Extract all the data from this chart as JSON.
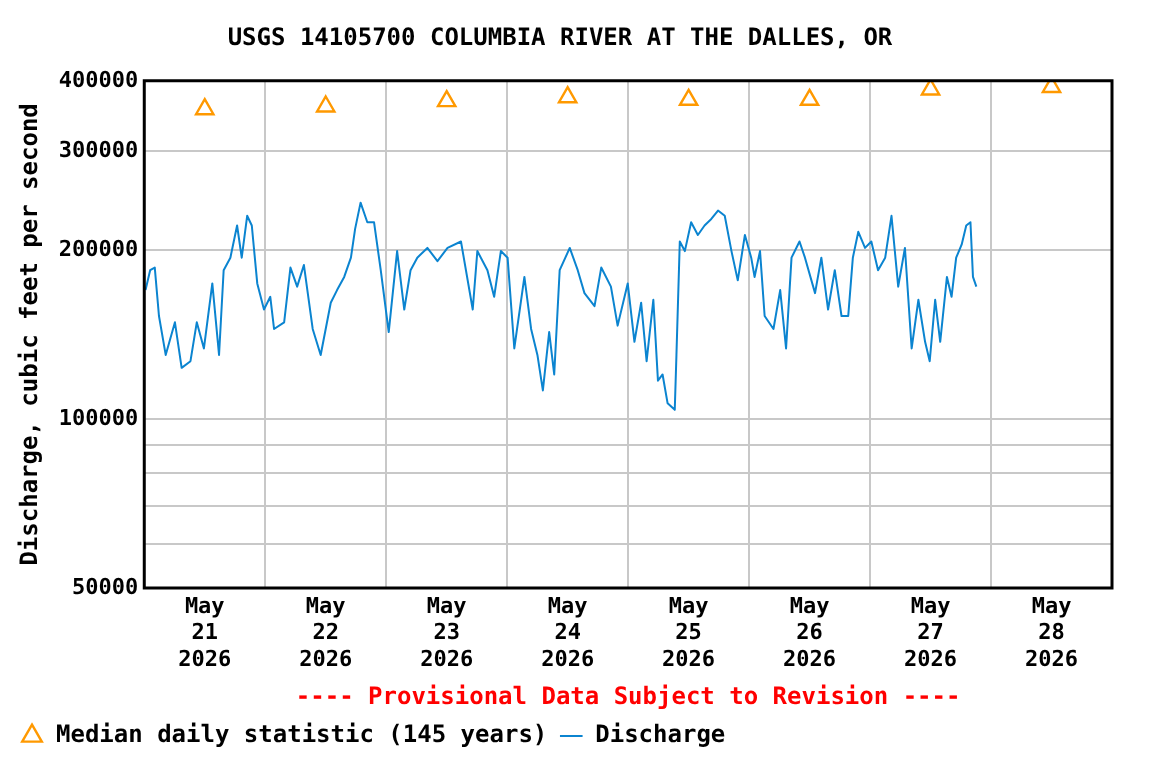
{
  "chart_data": {
    "type": "line",
    "title": "USGS 14105700 COLUMBIA RIVER AT THE DALLES, OR",
    "ylabel": "Discharge, cubic feet per second",
    "annotations": [
      "---- Provisional Data Subject to Revision ----"
    ],
    "xlim": [
      "2026-05-21T00:00",
      "2026-05-29T00:00"
    ],
    "xticks": [
      {
        "value": "2026-05-21T00:00",
        "label": null
      },
      {
        "value": "2026-05-21T12:00",
        "label": "May 21 2026"
      },
      {
        "value": "2026-05-22T00:00",
        "label": null
      },
      {
        "value": "2026-05-22T12:00",
        "label": "May 22 2026"
      },
      {
        "value": "2026-05-23T00:00",
        "label": null
      },
      {
        "value": "2026-05-23T12:00",
        "label": "May 23 2026"
      },
      {
        "value": "2026-05-24T00:00",
        "label": null
      },
      {
        "value": "2026-05-24T12:00",
        "label": "May 24 2026"
      },
      {
        "value": "2026-05-25T00:00",
        "label": null
      },
      {
        "value": "2026-05-25T12:00",
        "label": "May 25 2026"
      },
      {
        "value": "2026-05-26T00:00",
        "label": null
      },
      {
        "value": "2026-05-26T12:00",
        "label": "May 26 2026"
      },
      {
        "value": "2026-05-27T00:00",
        "label": null
      },
      {
        "value": "2026-05-27T12:00",
        "label": "May 27 2026"
      },
      {
        "value": "2026-05-28T00:00",
        "label": null
      },
      {
        "value": "2026-05-28T12:00",
        "label": "May 28 2026"
      },
      {
        "value": "2026-05-29T00:00",
        "label": null
      }
    ],
    "ylim": [
      50000,
      400000
    ],
    "yticks": [
      50000,
      {
        "value": 60000,
        "label": null
      },
      {
        "value": 70000,
        "label": null
      },
      {
        "value": 80000,
        "label": null
      },
      {
        "value": 90000,
        "label": null
      },
      100000,
      200000,
      300000,
      400000
    ],
    "log": true,
    "grid": true,
    "legend": "bottom",
    "series": [
      {
        "name": "Median daily statistic (145 years)",
        "type": "scatter",
        "marker": "triangle",
        "color": "#ff9900",
        "x": [
          "2026-05-21T12:00",
          "2026-05-22T12:00",
          "2026-05-23T12:00",
          "2026-05-24T12:00",
          "2026-05-25T12:00",
          "2026-05-26T12:00",
          "2026-05-27T12:00",
          "2026-05-28T12:00"
        ],
        "values": [
          356000,
          360000,
          368000,
          374000,
          370000,
          370000,
          386000,
          390000
        ]
      },
      {
        "name": "Discharge",
        "type": "line",
        "marker": "none",
        "color": "#0b84d0",
        "x": [
          "2026-05-21T00:15",
          "2026-05-21T01:10",
          "2026-05-21T02:05",
          "2026-05-21T02:55",
          "2026-05-21T04:15",
          "2026-05-21T06:05",
          "2026-05-21T07:25",
          "2026-05-21T09:10",
          "2026-05-21T10:25",
          "2026-05-21T11:50",
          "2026-05-21T13:30",
          "2026-05-21T14:50",
          "2026-05-21T15:45",
          "2026-05-21T17:05",
          "2026-05-21T18:25",
          "2026-05-21T19:20",
          "2026-05-21T20:25",
          "2026-05-21T21:20",
          "2026-05-21T22:25",
          "2026-05-21T23:45",
          "2026-05-22T01:00",
          "2026-05-22T01:45",
          "2026-05-22T03:45",
          "2026-05-22T05:00",
          "2026-05-22T06:20",
          "2026-05-22T07:40",
          "2026-05-22T09:25",
          "2026-05-22T11:00",
          "2026-05-22T13:00",
          "2026-05-22T14:15",
          "2026-05-22T15:40",
          "2026-05-22T17:00",
          "2026-05-22T17:50",
          "2026-05-22T18:55",
          "2026-05-22T20:15",
          "2026-05-22T21:35",
          "2026-05-22T22:55",
          "2026-05-23T00:30",
          "2026-05-23T02:10",
          "2026-05-23T03:35",
          "2026-05-23T04:50",
          "2026-05-23T06:10",
          "2026-05-23T08:10",
          "2026-05-23T10:10",
          "2026-05-23T12:10",
          "2026-05-23T14:50",
          "2026-05-23T17:10",
          "2026-05-23T18:05",
          "2026-05-23T20:05",
          "2026-05-23T21:25",
          "2026-05-23T22:45",
          "2026-05-24T00:05",
          "2026-05-24T01:25",
          "2026-05-24T03:25",
          "2026-05-24T04:45",
          "2026-05-24T06:00",
          "2026-05-24T07:05",
          "2026-05-24T08:20",
          "2026-05-24T09:20",
          "2026-05-24T10:25",
          "2026-05-24T12:25",
          "2026-05-24T14:00",
          "2026-05-24T15:20",
          "2026-05-24T17:20",
          "2026-05-24T18:40",
          "2026-05-24T20:35",
          "2026-05-24T21:55",
          "2026-05-24T23:55",
          "2026-05-25T01:15",
          "2026-05-25T02:35",
          "2026-05-25T03:40",
          "2026-05-25T05:00",
          "2026-05-25T05:55",
          "2026-05-25T06:50",
          "2026-05-25T07:50",
          "2026-05-25T09:15",
          "2026-05-25T09:35",
          "2026-05-25T10:15",
          "2026-05-25T11:15",
          "2026-05-25T12:30",
          "2026-05-25T13:50",
          "2026-05-25T15:10",
          "2026-05-25T16:30",
          "2026-05-25T17:50",
          "2026-05-25T19:10",
          "2026-05-25T20:30",
          "2026-05-25T21:45",
          "2026-05-25T23:10",
          "2026-05-26T00:25",
          "2026-05-26T01:05",
          "2026-05-26T02:10",
          "2026-05-26T03:05",
          "2026-05-26T04:50",
          "2026-05-26T06:10",
          "2026-05-26T07:20",
          "2026-05-26T08:25",
          "2026-05-26T10:00",
          "2026-05-26T11:05",
          "2026-05-26T13:05",
          "2026-05-26T14:20",
          "2026-05-26T15:40",
          "2026-05-26T17:00",
          "2026-05-26T18:20",
          "2026-05-26T19:40",
          "2026-05-26T20:35",
          "2026-05-26T21:40",
          "2026-05-26T23:00",
          "2026-05-27T00:15",
          "2026-05-27T01:35",
          "2026-05-27T03:00",
          "2026-05-27T04:15",
          "2026-05-27T05:35",
          "2026-05-27T06:55",
          "2026-05-27T08:15",
          "2026-05-27T09:35",
          "2026-05-27T10:55",
          "2026-05-27T11:50",
          "2026-05-27T12:55",
          "2026-05-27T13:55",
          "2026-05-27T15:15",
          "2026-05-27T16:10",
          "2026-05-27T17:05",
          "2026-05-27T18:10",
          "2026-05-27T19:05",
          "2026-05-27T19:55",
          "2026-05-27T20:25",
          "2026-05-27T21:05"
        ],
        "values": [
          169600,
          184000,
          186000,
          152500,
          130000,
          148600,
          123300,
          126700,
          148600,
          133500,
          174300,
          130000,
          184000,
          193700,
          221000,
          193700,
          230000,
          221000,
          174300,
          156600,
          165000,
          144600,
          148600,
          186000,
          172000,
          188000,
          144600,
          130000,
          161000,
          169600,
          179000,
          193700,
          218000,
          242700,
          224000,
          224000,
          184000,
          142800,
          199000,
          156600,
          184000,
          193700,
          201600,
          191000,
          201600,
          207000,
          156600,
          199000,
          184000,
          165000,
          199000,
          193700,
          133500,
          179000,
          144600,
          130000,
          112400,
          142800,
          120000,
          184000,
          201600,
          184000,
          167500,
          158800,
          186000,
          172000,
          146600,
          174300,
          137200,
          161000,
          126700,
          163000,
          117000,
          120000,
          106600,
          103800,
          130000,
          207000,
          199000,
          224000,
          212600,
          221000,
          227000,
          235000,
          230000,
          199000,
          176500,
          212600,
          193700,
          179000,
          199000,
          152500,
          144600,
          169600,
          133500,
          193700,
          207000,
          193700,
          167500,
          193700,
          156600,
          184000,
          152500,
          152500,
          193700,
          215400,
          201600,
          207000,
          184000,
          193700,
          230000,
          172000,
          201600,
          133500,
          163000,
          137200,
          126700,
          163000,
          137200,
          179000,
          165000,
          193700,
          204300,
          221000,
          224000,
          179000,
          172000
        ]
      }
    ]
  }
}
